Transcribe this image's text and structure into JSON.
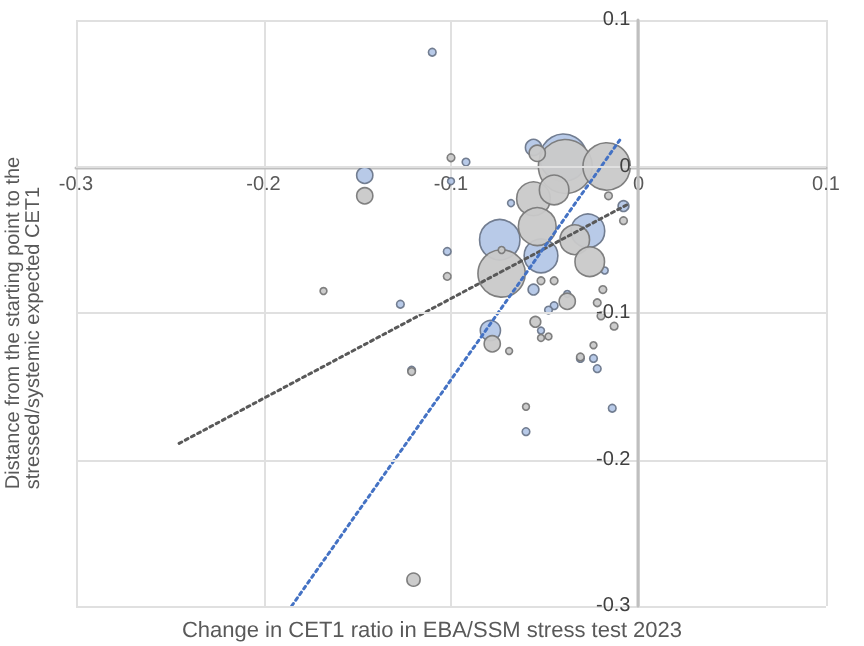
{
  "chart_data": {
    "type": "bubble",
    "xlabel": "Change in CET1 ratio in EBA/SSM stress test 2023",
    "ylabel": "Distance from the starting point to the\nstressed/systemic expected CET1",
    "xlim": [
      -0.3,
      0.1
    ],
    "xticks": [
      -0.3,
      -0.2,
      -0.1,
      0,
      0.1
    ],
    "ylim": [
      -0.3,
      0.1
    ],
    "yticks": [
      -0.3,
      -0.2,
      -0.1,
      0,
      0.1
    ],
    "grid": true,
    "marker": "circle",
    "series": [
      {
        "color": "#b4c7e7",
        "x": [
          -0.11,
          -0.092,
          -0.146,
          -0.1,
          -0.068,
          -0.04,
          -0.056,
          -0.074,
          -0.027,
          -0.052,
          -0.008,
          -0.102,
          -0.056,
          -0.045,
          -0.127,
          -0.079,
          -0.052,
          -0.018,
          -0.038,
          -0.121,
          -0.031,
          -0.024,
          -0.022,
          -0.014,
          -0.06,
          -0.048
        ],
        "values": [
          0.078,
          0.003,
          -0.006,
          -0.01,
          -0.025,
          0.006,
          0.013,
          -0.05,
          -0.044,
          -0.061,
          -0.027,
          -0.058,
          -0.084,
          -0.095,
          -0.094,
          -0.112,
          -0.112,
          -0.071,
          -0.087,
          -0.139,
          -0.131,
          -0.131,
          -0.138,
          -0.165,
          -0.181,
          -0.098
        ],
        "sizes": [
          0.02,
          0.02,
          0.09,
          0.016,
          0.016,
          0.77,
          0.09,
          0.56,
          0.39,
          0.39,
          0.04,
          0.02,
          0.04,
          0.02,
          0.02,
          0.14,
          0.016,
          0.016,
          0.016,
          0.02,
          0.02,
          0.02,
          0.02,
          0.02,
          0.02,
          0.02
        ]
      },
      {
        "color": "#c9c9c9",
        "x": [
          -0.168,
          -0.146,
          -0.1,
          -0.102,
          -0.039,
          -0.017,
          -0.054,
          -0.056,
          -0.045,
          -0.054,
          -0.034,
          -0.026,
          -0.073,
          -0.073,
          -0.038,
          -0.045,
          -0.052,
          -0.016,
          -0.008,
          -0.019,
          -0.022,
          -0.02,
          -0.013,
          -0.055,
          -0.078,
          -0.069,
          -0.052,
          -0.048,
          -0.024,
          -0.121,
          -0.031,
          -0.06,
          -0.12
        ],
        "values": [
          -0.085,
          -0.02,
          0.006,
          -0.075,
          0.0,
          0.0,
          0.009,
          -0.022,
          -0.016,
          -0.041,
          -0.05,
          -0.065,
          -0.073,
          -0.057,
          -0.092,
          -0.078,
          -0.078,
          -0.02,
          -0.037,
          -0.084,
          -0.093,
          -0.102,
          -0.109,
          -0.106,
          -0.121,
          -0.126,
          -0.117,
          -0.116,
          -0.122,
          -0.14,
          -0.13,
          -0.164,
          -0.282
        ],
        "sizes": [
          0.016,
          0.09,
          0.02,
          0.02,
          1,
          0.77,
          0.09,
          0.39,
          0.3,
          0.49,
          0.3,
          0.3,
          0.77,
          0.016,
          0.09,
          0.02,
          0.02,
          0.02,
          0.02,
          0.02,
          0.02,
          0.02,
          0.02,
          0.04,
          0.09,
          0.016,
          0.016,
          0.016,
          0.016,
          0.02,
          0.02,
          0.016,
          0.06
        ]
      },
      {
        "type": "line",
        "color": "#595959",
        "line_style": "dotted",
        "marker": "none",
        "x": [
          -0.245,
          -0.006
        ],
        "values": [
          -0.189,
          -0.026
        ]
      },
      {
        "type": "line",
        "color": "#4472c4",
        "line_style": "dotted",
        "marker": "none",
        "x": [
          -0.185,
          -0.01
        ],
        "values": [
          -0.3,
          0.018
        ]
      }
    ]
  }
}
